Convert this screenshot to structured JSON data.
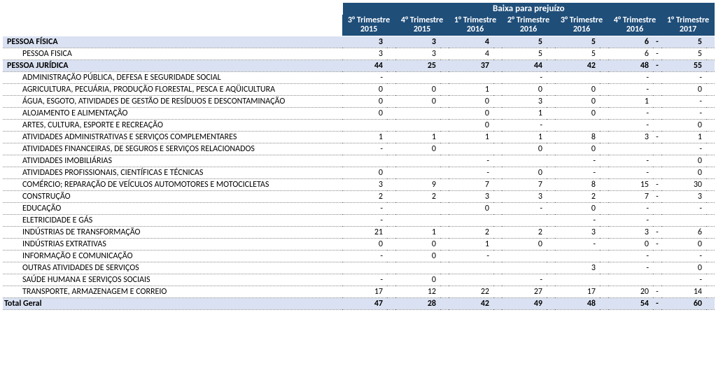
{
  "header": {
    "super_title": "Baixa para prejuízo",
    "columns": [
      "3° Trimestre 2015",
      "4° Trimestre 2015",
      "1° Trimestre 2016",
      "2° Trimestre 2016",
      "3° Trimestre 2016",
      "4° Trimestre 2016",
      "1° Trimestre 2017"
    ]
  },
  "rows": [
    {
      "type": "section",
      "label": "PESSOA FÍSICA",
      "vals": [
        "3",
        "3",
        "4",
        "5",
        "5",
        "6",
        "5"
      ],
      "dash": [
        "",
        "",
        "",
        "",
        "",
        "-",
        ""
      ]
    },
    {
      "type": "data",
      "label": "PESSOA FISICA",
      "vals": [
        "3",
        "3",
        "4",
        "5",
        "5",
        "6",
        "5"
      ],
      "dash": [
        "",
        "",
        "",
        "",
        "",
        "-",
        ""
      ]
    },
    {
      "type": "section",
      "label": "PESSOA JURÍDICA",
      "vals": [
        "44",
        "25",
        "37",
        "44",
        "42",
        "48",
        "55"
      ],
      "dash": [
        "",
        "",
        "",
        "",
        "",
        "-",
        ""
      ]
    },
    {
      "type": "data",
      "label": "ADMINISTRAÇÃO PÚBLICA, DEFESA E SEGURIDADE SOCIAL",
      "vals": [
        "-",
        "",
        "",
        "-",
        "",
        "-",
        "-"
      ],
      "dash": [
        "",
        "",
        "",
        "",
        "",
        "",
        ""
      ]
    },
    {
      "type": "data",
      "label": "AGRICULTURA, PECUÁRIA, PRODUÇÃO FLORESTAL, PESCA E AQÜICULTURA",
      "vals": [
        "0",
        "0",
        "1",
        "0",
        "0",
        "-",
        "0"
      ],
      "dash": [
        "",
        "",
        "",
        "",
        "",
        "",
        ""
      ]
    },
    {
      "type": "data",
      "label": "ÁGUA, ESGOTO, ATIVIDADES DE GESTÃO DE RESÍDUOS E DESCONTAMINAÇÃO",
      "vals": [
        "0",
        "0",
        "0",
        "3",
        "0",
        "1",
        "-"
      ],
      "dash": [
        "",
        "",
        "",
        "",
        "",
        "",
        ""
      ]
    },
    {
      "type": "data",
      "label": "ALOJAMENTO E ALIMENTAÇÃO",
      "vals": [
        "0",
        "",
        "0",
        "1",
        "0",
        "-",
        "-"
      ],
      "dash": [
        "",
        "",
        "",
        "",
        "",
        "",
        ""
      ]
    },
    {
      "type": "data",
      "label": "ARTES, CULTURA, ESPORTE E RECREAÇÃO",
      "vals": [
        "",
        "",
        "0",
        "-",
        "",
        "-",
        "0"
      ],
      "dash": [
        "",
        "",
        "",
        "",
        "",
        "",
        ""
      ]
    },
    {
      "type": "data",
      "label": "ATIVIDADES ADMINISTRATIVAS E SERVIÇOS COMPLEMENTARES",
      "vals": [
        "1",
        "1",
        "1",
        "1",
        "8",
        "3",
        "1"
      ],
      "dash": [
        "",
        "",
        "",
        "",
        "",
        "-",
        ""
      ]
    },
    {
      "type": "data",
      "label": "ATIVIDADES FINANCEIRAS, DE SEGUROS E SERVIÇOS RELACIONADOS",
      "vals": [
        "-",
        "0",
        "",
        "0",
        "0",
        "",
        "-"
      ],
      "dash": [
        "",
        "",
        "",
        "",
        "",
        "",
        ""
      ]
    },
    {
      "type": "data",
      "label": "ATIVIDADES IMOBILIÁRIAS",
      "vals": [
        "",
        "",
        "-",
        "",
        "-",
        "-",
        "0"
      ],
      "dash": [
        "",
        "",
        "",
        "",
        "",
        "",
        ""
      ]
    },
    {
      "type": "data",
      "label": "ATIVIDADES PROFISSIONAIS, CIENTÍFICAS E TÉCNICAS",
      "vals": [
        "0",
        "",
        "-",
        "0",
        "-",
        "-",
        "0"
      ],
      "dash": [
        "",
        "",
        "",
        "",
        "",
        "",
        ""
      ]
    },
    {
      "type": "data",
      "label": "COMÉRCIO; REPARAÇÃO DE VEÍCULOS AUTOMOTORES E MOTOCICLETAS",
      "vals": [
        "3",
        "9",
        "7",
        "7",
        "8",
        "15",
        "30"
      ],
      "dash": [
        "",
        "",
        "",
        "",
        "",
        "-",
        ""
      ]
    },
    {
      "type": "data",
      "label": "CONSTRUÇÃO",
      "vals": [
        "2",
        "2",
        "3",
        "3",
        "2",
        "7",
        "3"
      ],
      "dash": [
        "",
        "",
        "",
        "",
        "",
        "-",
        ""
      ]
    },
    {
      "type": "data",
      "label": "EDUCAÇÃO",
      "vals": [
        "-",
        "",
        "0",
        "-",
        "0",
        "-",
        "-"
      ],
      "dash": [
        "",
        "",
        "",
        "",
        "",
        "",
        ""
      ]
    },
    {
      "type": "data",
      "label": "ELETRICIDADE E GÁS",
      "vals": [
        "-",
        "",
        "",
        "",
        "-",
        "-",
        ""
      ],
      "dash": [
        "",
        "",
        "",
        "",
        "",
        "",
        ""
      ]
    },
    {
      "type": "data",
      "label": "INDÚSTRIAS DE TRANSFORMAÇÃO",
      "vals": [
        "21",
        "1",
        "2",
        "2",
        "3",
        "3",
        "6"
      ],
      "dash": [
        "",
        "",
        "",
        "",
        "",
        "-",
        ""
      ]
    },
    {
      "type": "data",
      "label": "INDÚSTRIAS EXTRATIVAS",
      "vals": [
        "0",
        "0",
        "1",
        "0",
        "-",
        "0",
        "0"
      ],
      "dash": [
        "",
        "",
        "",
        "",
        "",
        "-",
        ""
      ]
    },
    {
      "type": "data",
      "label": "INFORMAÇÃO E COMUNICAÇÃO",
      "vals": [
        "-",
        "0",
        "-",
        "",
        "",
        "-",
        "-"
      ],
      "dash": [
        "",
        "",
        "",
        "",
        "",
        "",
        ""
      ]
    },
    {
      "type": "data",
      "label": "OUTRAS ATIVIDADES DE SERVIÇOS",
      "vals": [
        "",
        "",
        "",
        "",
        "3",
        "-",
        "0"
      ],
      "dash": [
        "",
        "",
        "",
        "",
        "",
        "",
        ""
      ]
    },
    {
      "type": "data",
      "label": "SAÚDE HUMANA E SERVIÇOS SOCIAIS",
      "vals": [
        "-",
        "0",
        "",
        "-",
        "",
        "",
        "-"
      ],
      "dash": [
        "",
        "",
        "",
        "",
        "",
        "",
        ""
      ]
    },
    {
      "type": "data",
      "label": "TRANSPORTE, ARMAZENAGEM E CORREIO",
      "vals": [
        "17",
        "12",
        "22",
        "27",
        "17",
        "20",
        "14"
      ],
      "dash": [
        "",
        "",
        "",
        "",
        "",
        "-",
        ""
      ]
    }
  ],
  "total": {
    "label": "Total Geral",
    "vals": [
      "47",
      "28",
      "42",
      "49",
      "48",
      "54",
      "60"
    ],
    "dash": [
      "",
      "",
      "",
      "",
      "",
      "-",
      ""
    ]
  },
  "colors": {
    "header_bg": "#1f4e79",
    "header_fg": "#ffffff",
    "section_bg": "#d9e1f2",
    "row_border": "#888888"
  }
}
